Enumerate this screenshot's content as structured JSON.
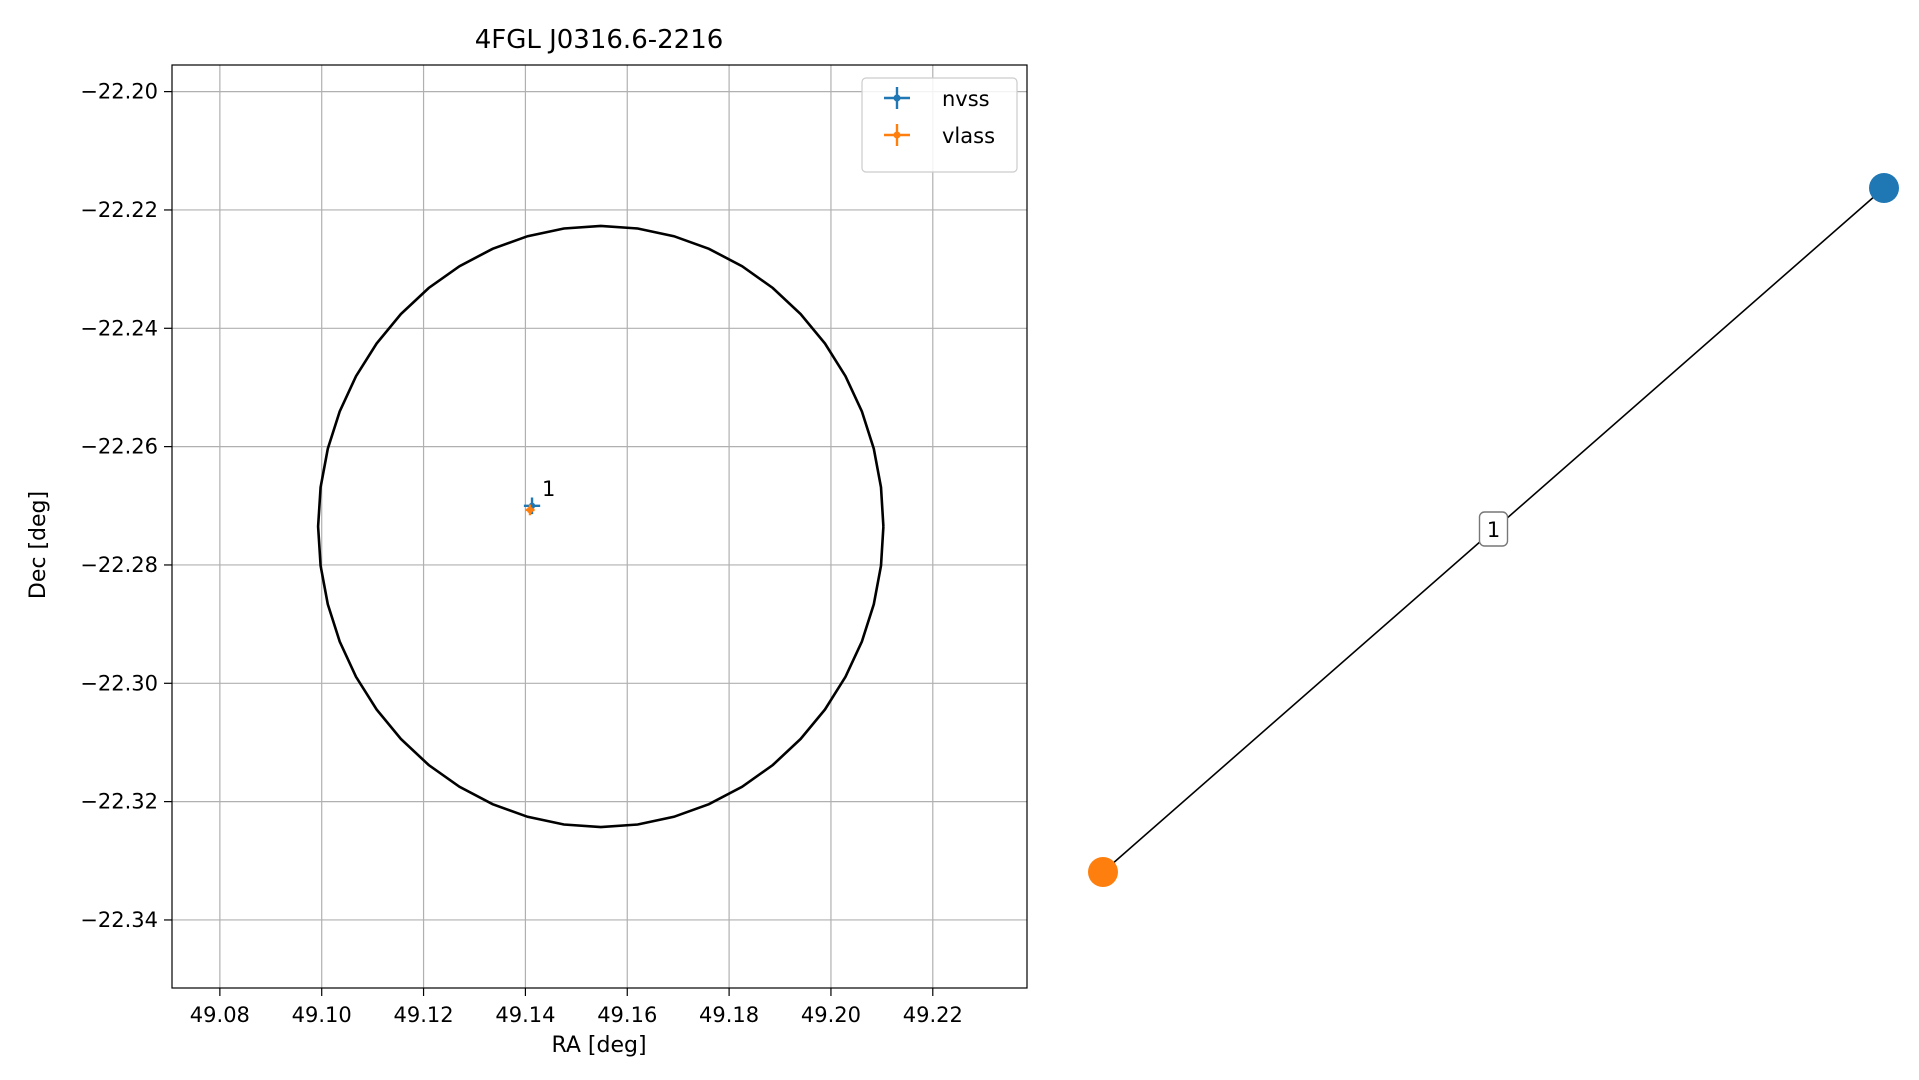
{
  "chart_data": [
    {
      "type": "scatter",
      "title": "4FGL J0316.6-2216",
      "xlabel": "RA [deg]",
      "ylabel": "Dec [deg]",
      "xlim": [
        49.0706,
        49.2385
      ],
      "ylim": [
        -22.3515,
        -22.1955
      ],
      "xticks": [
        "49.08",
        "49.10",
        "49.12",
        "49.14",
        "49.16",
        "49.18",
        "49.20",
        "49.22"
      ],
      "yticks": [
        "−22.20",
        "−22.22",
        "−22.24",
        "−22.26",
        "−22.28",
        "−22.30",
        "−22.32",
        "−22.34"
      ],
      "grid": true,
      "legend_position": "upper right",
      "series": [
        {
          "name": "nvss",
          "color": "#1f77b4",
          "x": [
            49.1413
          ],
          "y": [
            -22.27
          ],
          "xerr": [
            0.0016
          ],
          "yerr": [
            0.0014
          ]
        },
        {
          "name": "vlass",
          "color": "#ff7f0e",
          "x": [
            49.1409
          ],
          "y": [
            -22.2707
          ],
          "xerr": [
            0.0009
          ],
          "yerr": [
            0.0009
          ]
        }
      ],
      "annotations": [
        {
          "text": "1",
          "x": 49.1413,
          "y": -22.27
        }
      ],
      "ellipse": {
        "center_ra": 49.1548,
        "center_dec": -22.2735,
        "semi_ra": 0.0555,
        "semi_dec": 0.0508,
        "color": "#000000"
      }
    },
    {
      "type": "graph",
      "nodes": [
        {
          "id": "nvss",
          "color": "#1f77b4"
        },
        {
          "id": "vlass",
          "color": "#ff7f0e"
        }
      ],
      "edges": [
        {
          "source": "nvss",
          "target": "vlass",
          "label": "1"
        }
      ]
    }
  ]
}
